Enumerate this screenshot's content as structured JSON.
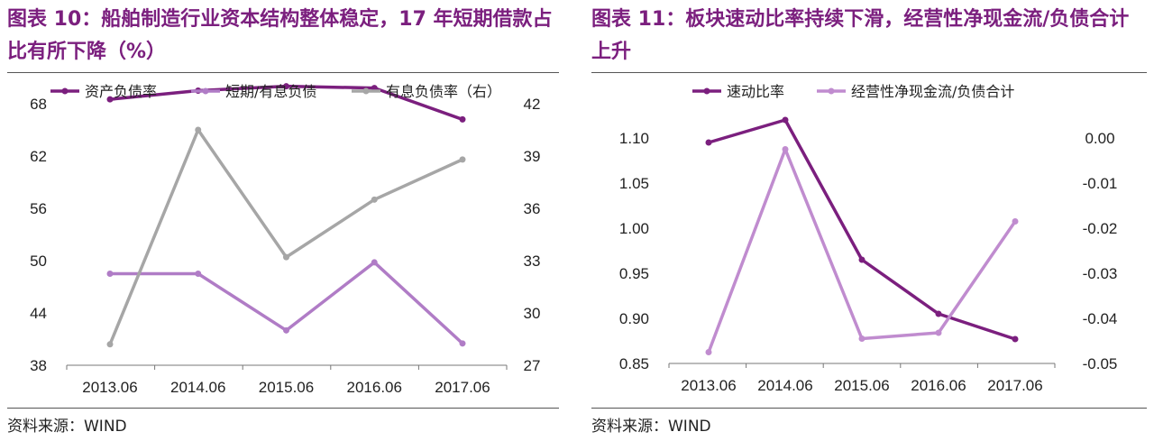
{
  "left": {
    "title": "图表 10：船舶制造行业资本结构整体稳定，17 年短期借款占比有所下降（%）",
    "source": "资料来源：WIND",
    "chart_data": {
      "type": "line",
      "categories": [
        "2013.06",
        "2014.06",
        "2015.06",
        "2016.06",
        "2017.06"
      ],
      "left_ylim": [
        38,
        68
      ],
      "left_ticks": [
        "68",
        "62",
        "56",
        "50",
        "44",
        "38"
      ],
      "right_ylim": [
        27,
        42
      ],
      "right_ticks": [
        "42",
        "39",
        "36",
        "33",
        "30",
        "27"
      ],
      "series": [
        {
          "name": "资产负债率",
          "axis": "left",
          "color": "#7b1f7e",
          "values": [
            68.5,
            69.5,
            70.0,
            69.8,
            66.2
          ]
        },
        {
          "name": "短期/有息负债",
          "axis": "left",
          "color": "#b07cc6",
          "values": [
            48.5,
            48.5,
            42.0,
            49.8,
            40.5
          ]
        },
        {
          "name": "有息负债率（右）",
          "axis": "right",
          "color": "#a6a6a6",
          "values": [
            28.2,
            40.5,
            33.2,
            36.5,
            38.8
          ]
        }
      ]
    }
  },
  "right": {
    "title": "图表 11：板块速动比率持续下滑，经营性净现金流/负债合计上升",
    "source": "资料来源：WIND",
    "chart_data": {
      "type": "line",
      "categories": [
        "2013.06",
        "2014.06",
        "2015.06",
        "2016.06",
        "2017.06"
      ],
      "left_ylim": [
        0.85,
        1.1
      ],
      "left_ticks": [
        "1.10",
        "1.05",
        "1.00",
        "0.95",
        "0.90",
        "0.85"
      ],
      "right_ylim": [
        -0.05,
        0.0
      ],
      "right_ticks": [
        "0.00",
        "-0.01",
        "-0.02",
        "-0.03",
        "-0.04",
        "-0.05"
      ],
      "series": [
        {
          "name": "速动比率",
          "axis": "left",
          "color": "#7b1f7e",
          "values": [
            1.095,
            1.12,
            0.965,
            0.905,
            0.877
          ]
        },
        {
          "name": "经营性净现金流/负债合计",
          "axis": "right",
          "color": "#c08ccf",
          "values": [
            -0.0475,
            -0.0025,
            -0.0445,
            -0.0432,
            -0.0185
          ]
        }
      ]
    }
  }
}
